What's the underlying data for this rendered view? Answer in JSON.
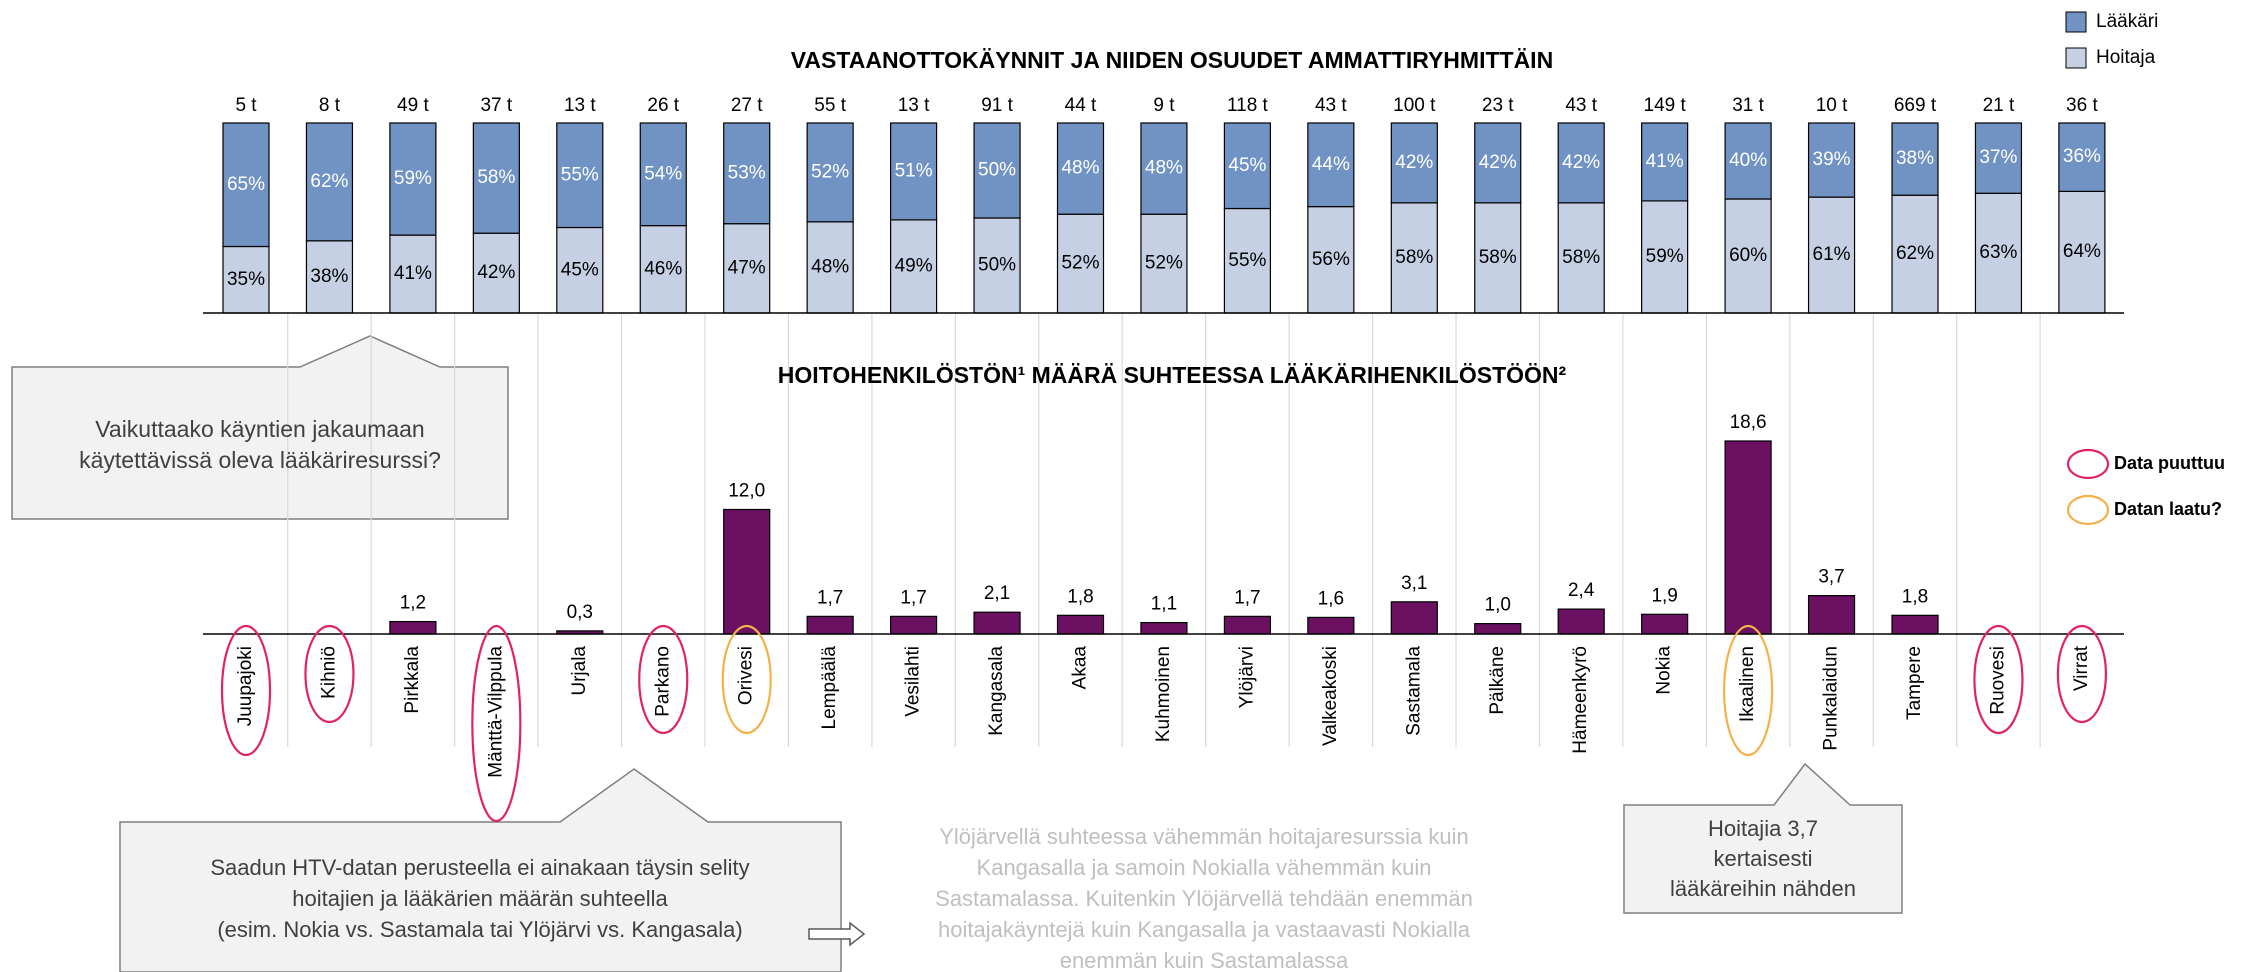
{
  "chart_data": [
    {
      "type": "stacked_bar",
      "title": "VASTAANOTTOKÄYNNIT JA NIIDEN OSUUDET AMMATTIRYHMITTÄIN",
      "totals": [
        "5 t",
        "8 t",
        "49 t",
        "37 t",
        "13 t",
        "26 t",
        "27 t",
        "55 t",
        "13 t",
        "91 t",
        "44 t",
        "9 t",
        "118 t",
        "43 t",
        "100 t",
        "23 t",
        "43 t",
        "149 t",
        "31 t",
        "10 t",
        "669 t",
        "21 t",
        "36 t"
      ],
      "series": [
        {
          "name": "Lääkäri",
          "color": "#7193c4",
          "values": [
            65,
            62,
            59,
            58,
            55,
            54,
            53,
            52,
            51,
            50,
            48,
            48,
            45,
            44,
            42,
            42,
            42,
            41,
            40,
            39,
            38,
            37,
            36
          ],
          "value_labels": [
            "65%",
            "62%",
            "59%",
            "58%",
            "55%",
            "54%",
            "53%",
            "52%",
            "51%",
            "50%",
            "48%",
            "48%",
            "45%",
            "44%",
            "42%",
            "42%",
            "42%",
            "41%",
            "40%",
            "39%",
            "38%",
            "37%",
            "36%"
          ]
        },
        {
          "name": "Hoitaja",
          "color": "#c6d0e4",
          "values": [
            35,
            38,
            41,
            42,
            45,
            46,
            47,
            48,
            49,
            50,
            52,
            52,
            55,
            56,
            58,
            58,
            58,
            59,
            60,
            61,
            62,
            63,
            64
          ],
          "value_labels": [
            "35%",
            "38%",
            "41%",
            "42%",
            "45%",
            "46%",
            "47%",
            "48%",
            "49%",
            "50%",
            "52%",
            "52%",
            "55%",
            "56%",
            "58%",
            "58%",
            "58%",
            "59%",
            "60%",
            "61%",
            "62%",
            "63%",
            "64%"
          ]
        }
      ]
    },
    {
      "type": "bar",
      "title": "HOITOHENKILÖSTÖN¹ MÄÄRÄ SUHTEESSA LÄÄKÄRIHENKILÖSTÖÖN²",
      "categories": [
        "Juupajoki",
        "Kihniö",
        "Pirkkala",
        "Mänttä-Vilppula",
        "Urjala",
        "Parkano",
        "Orivesi",
        "Lempäälä",
        "Vesilahti",
        "Kangasala",
        "Akaa",
        "Kuhmoinen",
        "Ylöjärvi",
        "Valkeakoski",
        "Sastamala",
        "Pälkäne",
        "Hämeenkyrö",
        "Nokia",
        "Ikaalinen",
        "Punkalaidun",
        "Tampere",
        "Ruovesi",
        "Virrat"
      ],
      "values": [
        null,
        null,
        1.2,
        null,
        0.3,
        null,
        12.0,
        1.7,
        1.7,
        2.1,
        1.8,
        1.1,
        1.7,
        1.6,
        3.1,
        1.0,
        2.4,
        1.9,
        18.6,
        3.7,
        1.8,
        null,
        null
      ],
      "value_labels": [
        null,
        null,
        "1,2",
        null,
        "0,3",
        null,
        "12,0",
        "1,7",
        "1,7",
        "2,1",
        "1,8",
        "1,1",
        "1,7",
        "1,6",
        "3,1",
        "1,0",
        "2,4",
        "1,9",
        "18,6",
        "3,7",
        "1,8",
        null,
        null
      ],
      "color": "#6c1162",
      "markers": [
        {
          "label": "Data puuttuu",
          "color": "#e0245e",
          "categories": [
            "Juupajoki",
            "Kihniö",
            "Mänttä-Vilppula",
            "Parkano",
            "Ruovesi",
            "Virrat"
          ]
        },
        {
          "label": "Datan laatu?",
          "color": "#f5b04a",
          "categories": [
            "Orivesi",
            "Ikaalinen"
          ]
        }
      ]
    }
  ],
  "notes": [
    {
      "lines": [
        "Vaikuttaako käyntien jakaumaan",
        "käytettävissä oleva lääkäriresurssi?"
      ]
    },
    {
      "lines": [
        "Saadun HTV-datan perusteella ei ainakaan täysin selity",
        "hoitajien ja lääkärien määrän suhteella",
        "(esim. Nokia vs. Sastamala tai Ylöjärvi vs. Kangasala)"
      ]
    },
    {
      "lines": [
        "Hoitajia 3,7",
        "kertaisesti",
        "lääkäreihin nähden"
      ]
    },
    {
      "lines": [
        "Ylöjärvellä suhteessa vähemmän hoitajaresurssia kuin",
        "Kangasalla ja samoin Nokialla vähemmän kuin",
        "Sastamalassa. Kuitenkin Ylöjärvellä tehdään enemmän",
        "hoitajakäyntejä kuin Kangasalla ja vastaavasti Nokialla",
        "enemmän kuin Sastamalassa"
      ]
    }
  ]
}
